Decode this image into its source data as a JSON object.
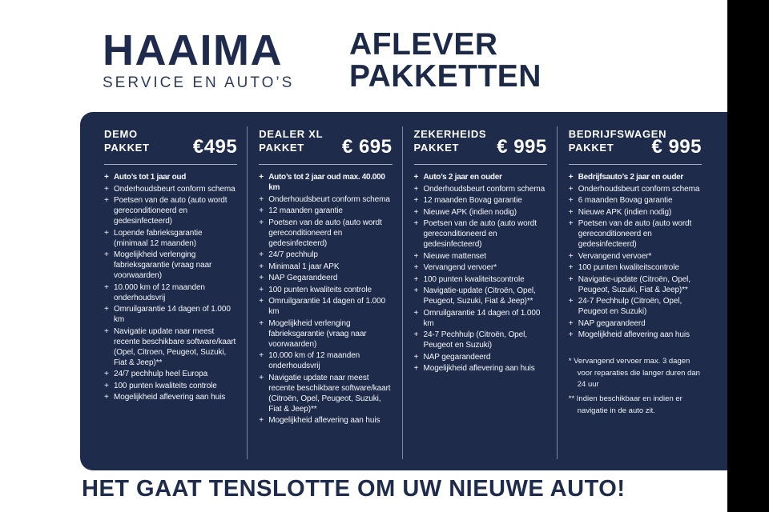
{
  "colors": {
    "panel_navy": "#1e2b4a",
    "ink_navy": "#1c2947",
    "text_white": "#ffffff",
    "divider": "#7c87a1",
    "right_bar": "#000000"
  },
  "header": {
    "brand": "HAAIMA",
    "tagline": "SERVICE EN AUTO’S",
    "title_line1": "AFLEVER",
    "title_line2": "PAKKETTEN"
  },
  "packages": [
    {
      "name_line1": "DEMO",
      "name_line2": "PAKKET",
      "price": "€495",
      "items": [
        {
          "text": "Auto’s tot 1 jaar oud",
          "bold": true
        },
        {
          "text": "Onderhoudsbeurt conform schema"
        },
        {
          "text": "Poetsen van de auto (auto wordt gereconditioneerd en gedesinfecteerd)"
        },
        {
          "text": "Lopende fabrieksgarantie (minimaal 12 maanden)"
        },
        {
          "text": "Mogelijkheid verlenging fabrieksgarantie (vraag naar voorwaarden)"
        },
        {
          "text": "10.000 km of 12 maanden onderhoudsvrij"
        },
        {
          "text": "Omruilgarantie 14 dagen of 1.000 km"
        },
        {
          "text": "Navigatie update naar meest recente beschikbare software/kaart (Opel, Citroen, Peugeot, Suzuki, Fiat & Jeep)**"
        },
        {
          "text": "24/7 pechhulp heel Europa"
        },
        {
          "text": "100 punten kwaliteits controle"
        },
        {
          "text": "Mogelijkheid aflevering aan huis"
        }
      ]
    },
    {
      "name_line1": "DEALER XL",
      "name_line2": "PAKKET",
      "price": "€ 695",
      "items": [
        {
          "text": "Auto’s tot 2 jaar oud max. 40.000 km",
          "bold": true
        },
        {
          "text": "Onderhoudsbeurt conform schema"
        },
        {
          "text": "12 maanden garantie"
        },
        {
          "text": "Poetsen van de auto (auto wordt gereconditioneerd en gedesinfecteerd)"
        },
        {
          "text": "24/7 pechhulp"
        },
        {
          "text": "Minimaal 1 jaar APK"
        },
        {
          "text": "NAP Gegarandeerd"
        },
        {
          "text": "100 punten kwaliteits controle"
        },
        {
          "text": "Omruilgarantie 14 dagen of 1.000 km"
        },
        {
          "text": "Mogelijkheid verlenging fabrieksgarantie (vraag naar voorwaarden)"
        },
        {
          "text": "10.000 km of 12 maanden onderhoudsvrij"
        },
        {
          "text": "Navigatie update naar meest recente beschikbare software/kaart (Citroën, Opel, Peugeot, Suzuki, Fiat & Jeep)**"
        },
        {
          "text": "Mogelijkheid aflevering aan huis"
        }
      ]
    },
    {
      "name_line1": "ZEKERHEIDS",
      "name_line2": "PAKKET",
      "price": "€ 995",
      "items": [
        {
          "text": "Auto’s 2 jaar en ouder",
          "bold": true
        },
        {
          "text": "Onderhoudsbeurt conform schema"
        },
        {
          "text": "12 maanden Bovag garantie"
        },
        {
          "text": "Nieuwe APK (indien nodig)"
        },
        {
          "text": "Poetsen van de auto (auto wordt gereconditioneerd en gedesinfecteerd)"
        },
        {
          "text": "Nieuwe mattenset"
        },
        {
          "text": "Vervangend vervoer*"
        },
        {
          "text": "100 punten kwaliteitscontrole"
        },
        {
          "text": "Navigatie-update (Citroën, Opel, Peugeot, Suzuki, Fiat & Jeep)**"
        },
        {
          "text": "Omruilgarantie 14 dagen of 1.000 km"
        },
        {
          "text": "24-7 Pechhulp (Citroën, Opel, Peugeot en Suzuki)"
        },
        {
          "text": "NAP gegarandeerd"
        },
        {
          "text": "Mogelijkheid aflevering aan huis"
        }
      ]
    },
    {
      "name_line1": "BEDRIJFSWAGEN",
      "name_line2": "PAKKET",
      "price": "€ 995",
      "items": [
        {
          "text": "Bedrijfsauto’s 2 jaar en ouder",
          "bold": true
        },
        {
          "text": "Onderhoudsbeurt conform schema"
        },
        {
          "text": "6 maanden Bovag garantie"
        },
        {
          "text": "Nieuwe APK (indien nodig)"
        },
        {
          "text": "Poetsen van de auto (auto wordt gereconditioneerd en gedesinfecteerd)"
        },
        {
          "text": "Vervangend vervoer*"
        },
        {
          "text": "100 punten kwaliteitscontrole"
        },
        {
          "text": "Navigatie-update (Citroën, Opel, Peugeot, Suzuki, Fiat & Jeep)**"
        },
        {
          "text": "24-7 Pechhulp (Citroën, Opel, Peugeot en Suzuki)"
        },
        {
          "text": "NAP gegarandeerd"
        },
        {
          "text": "Mogelijkheid aflevering aan huis"
        }
      ]
    }
  ],
  "footnotes": [
    "* Vervangend vervoer max. 3 dagen voor reparaties die langer duren dan 24 uur",
    "** Indien beschikbaar en indien er navigatie in de auto zit."
  ],
  "footer": {
    "slogan": "HET GAAT TENSLOTTE OM UW NIEUWE AUTO!"
  }
}
